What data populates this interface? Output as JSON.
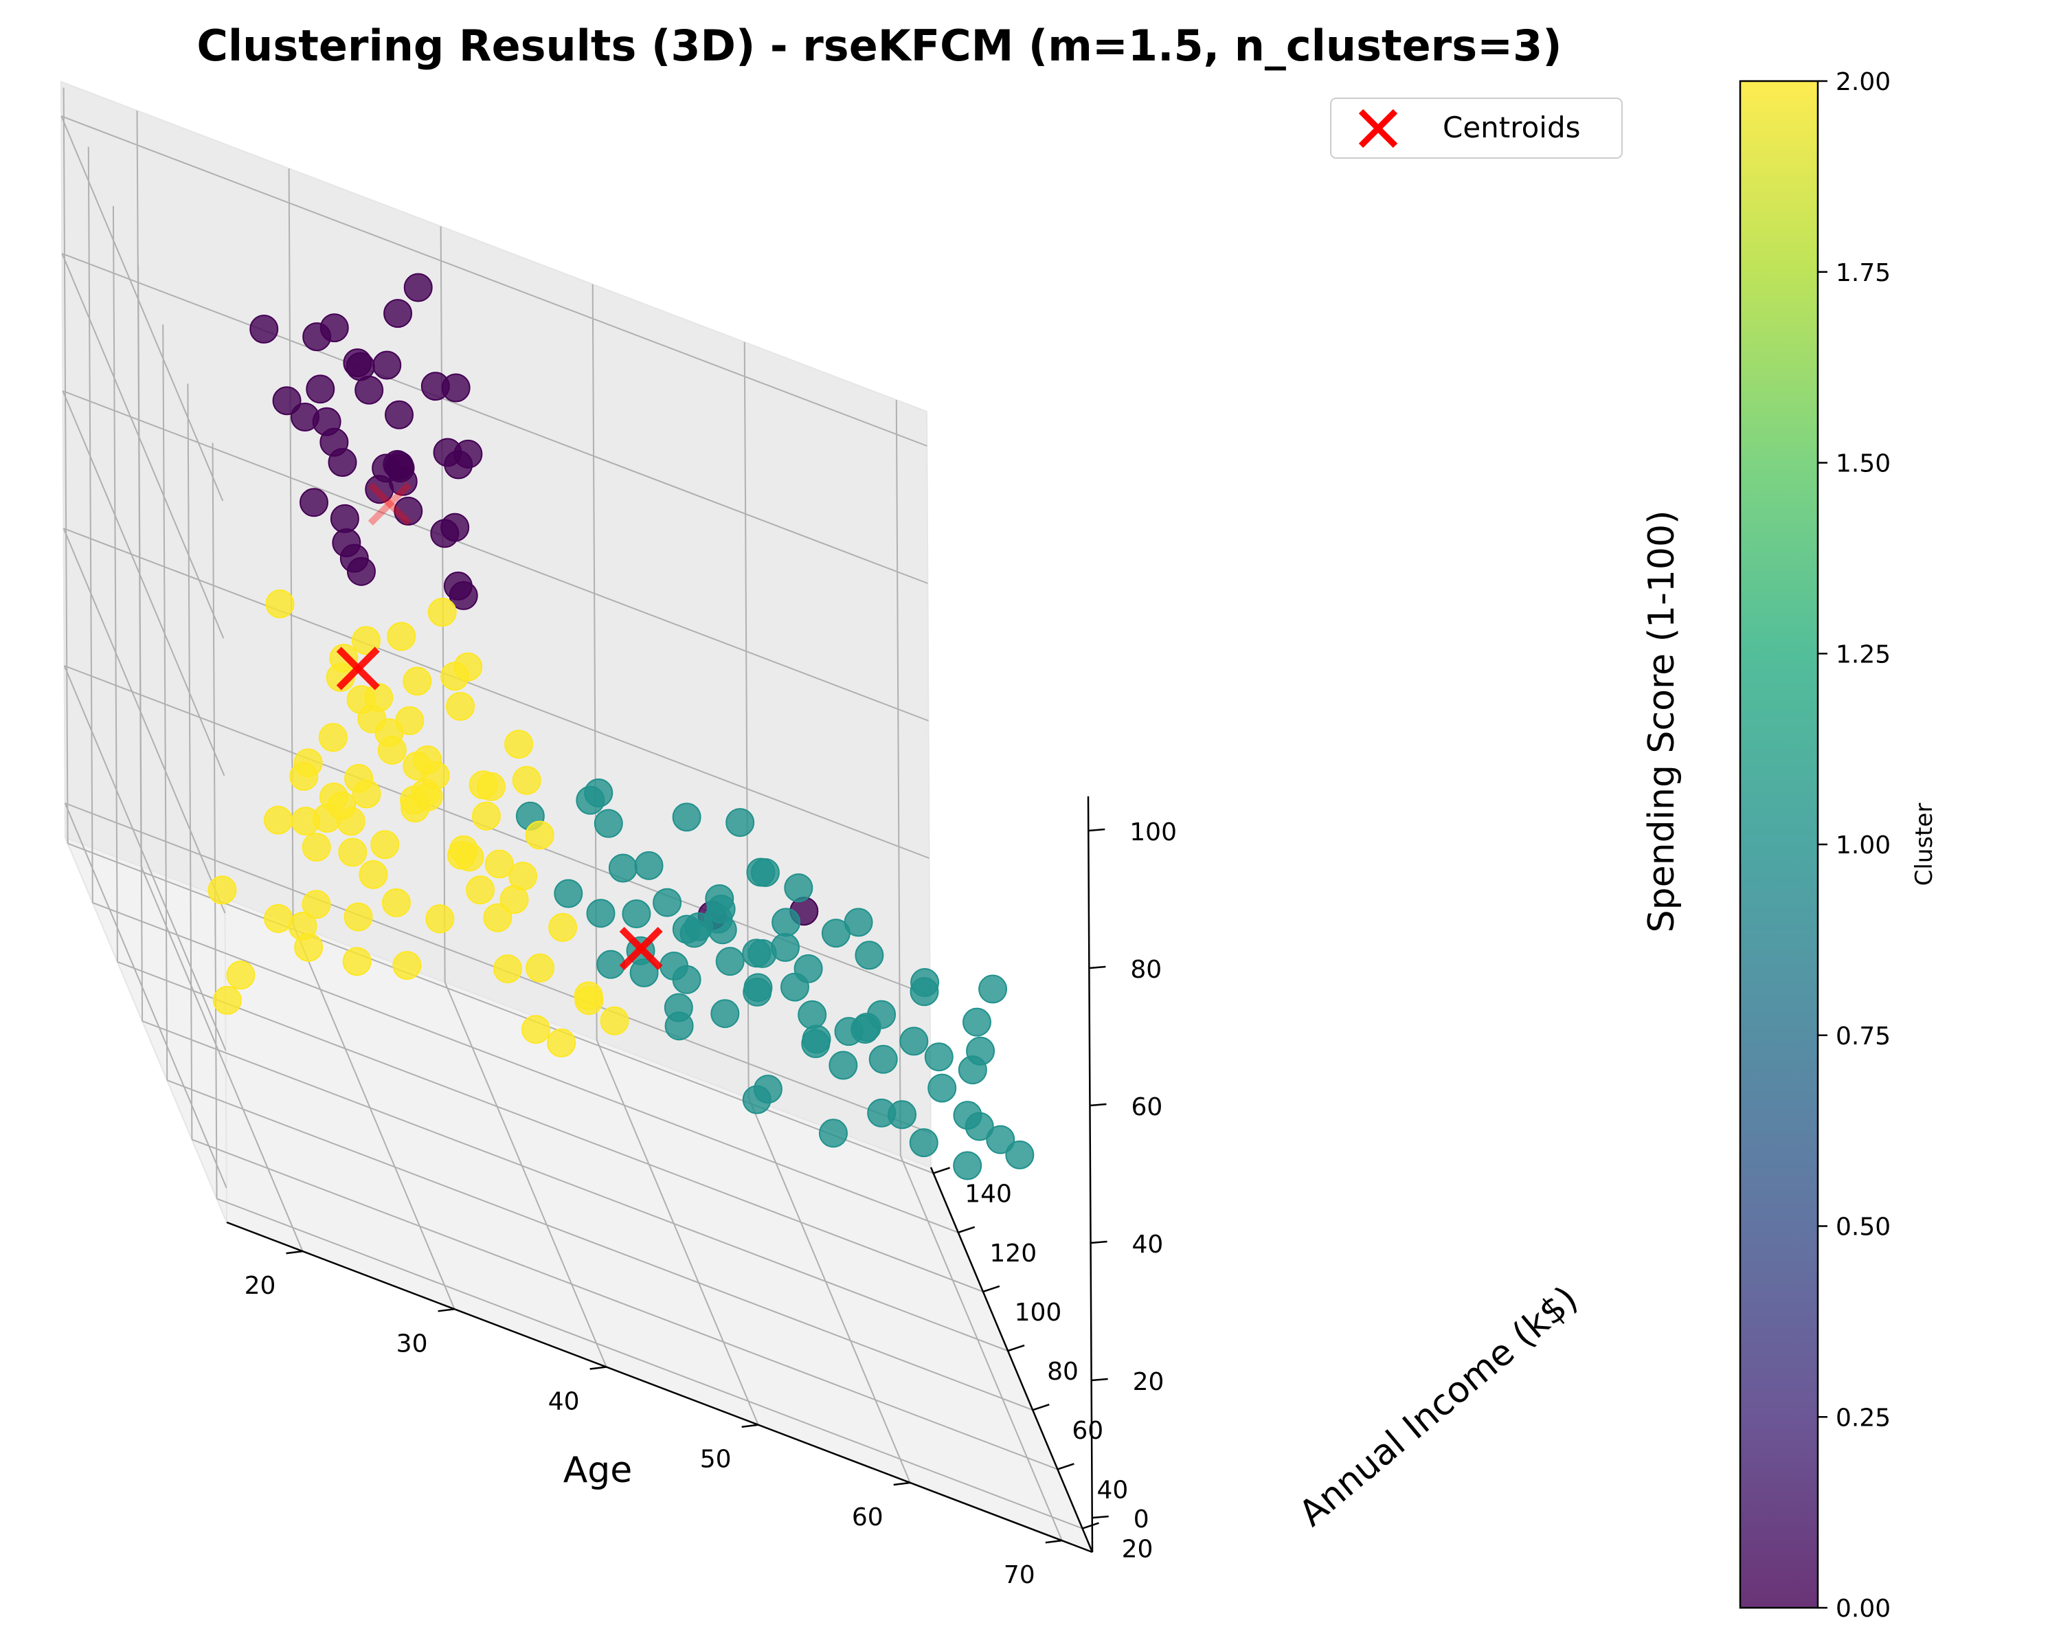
{
  "chart_data": {
    "type": "scatter",
    "title": "Clustering Results (3D) - rseKFCM (m=1.5, n_clusters=3)",
    "xlabel": "Age",
    "ylabel": "Annual Income (k$)",
    "zlabel": "Spending Score (1-100)",
    "x_ticks": [
      20,
      30,
      40,
      50,
      60,
      70
    ],
    "y_ticks": [
      20,
      40,
      60,
      80,
      100,
      120,
      140
    ],
    "z_ticks": [
      0,
      20,
      40,
      60,
      80,
      100
    ],
    "xlim": [
      15,
      72
    ],
    "ylim": [
      12,
      142
    ],
    "zlim": [
      -5,
      105
    ],
    "grid": true,
    "legend": {
      "label": "Centroids",
      "position": "top-right",
      "marker_color": "#ff0000"
    },
    "colorbar": {
      "label": "Cluster",
      "ticks": [
        "0.00",
        "0.25",
        "0.50",
        "0.75",
        "1.00",
        "1.25",
        "1.50",
        "1.75",
        "2.00"
      ],
      "range": [
        0,
        2
      ],
      "colormap": "viridis"
    },
    "cluster_colors": [
      "#440154",
      "#21918c",
      "#fde725"
    ],
    "centroids": [
      {
        "cluster": 0,
        "x": 32,
        "y": 86,
        "z": 82
      },
      {
        "cluster": 1,
        "x": 46,
        "y": 56,
        "z": 42
      },
      {
        "cluster": 2,
        "x": 25,
        "y": 26,
        "z": 78
      }
    ],
    "series": [
      {
        "cluster": 0,
        "points": [
          [
            28,
            60,
            80
          ],
          [
            30,
            64,
            95
          ],
          [
            35,
            70,
            88
          ],
          [
            32,
            75,
            90
          ],
          [
            29,
            78,
            75
          ],
          [
            31,
            82,
            85
          ],
          [
            36,
            88,
            92
          ],
          [
            27,
            86,
            78
          ],
          [
            33,
            92,
            86
          ],
          [
            38,
            96,
            90
          ],
          [
            30,
            98,
            73
          ],
          [
            34,
            102,
            82
          ],
          [
            29,
            105,
            88
          ],
          [
            37,
            110,
            93
          ],
          [
            31,
            112,
            76
          ],
          [
            35,
            115,
            85
          ],
          [
            39,
            118,
            91
          ],
          [
            28,
            120,
            79
          ],
          [
            33,
            124,
            87
          ],
          [
            36,
            128,
            95
          ],
          [
            30,
            130,
            74
          ],
          [
            34,
            134,
            83
          ],
          [
            38,
            136,
            97
          ],
          [
            32,
            137,
            72
          ],
          [
            27,
            126,
            86
          ],
          [
            31,
            118,
            93
          ],
          [
            35,
            108,
            74
          ],
          [
            33,
            100,
            97
          ],
          [
            29,
            94,
            85
          ],
          [
            37,
            88,
            72
          ],
          [
            32,
            78,
            91
          ],
          [
            28,
            72,
            79
          ],
          [
            34,
            66,
            88
          ],
          [
            36,
            80,
            76
          ],
          [
            31,
            90,
            96
          ],
          [
            30,
            120,
            90
          ],
          [
            38,
            104,
            85
          ],
          [
            52,
            72,
            45
          ],
          [
            60,
            96,
            42
          ]
        ]
      },
      {
        "cluster": 1,
        "points": [
          [
            48,
            54,
            42
          ],
          [
            54,
            56,
            48
          ],
          [
            60,
            60,
            40
          ],
          [
            45,
            58,
            52
          ],
          [
            50,
            62,
            45
          ],
          [
            52,
            66,
            50
          ],
          [
            58,
            68,
            44
          ],
          [
            62,
            70,
            38
          ],
          [
            44,
            72,
            55
          ],
          [
            48,
            74,
            48
          ],
          [
            53,
            76,
            42
          ],
          [
            56,
            78,
            52
          ],
          [
            63,
            80,
            45
          ],
          [
            46,
            82,
            49
          ],
          [
            50,
            84,
            40
          ],
          [
            55,
            86,
            55
          ],
          [
            59,
            88,
            48
          ],
          [
            65,
            60,
            50
          ],
          [
            68,
            58,
            42
          ],
          [
            61,
            64,
            55
          ],
          [
            66,
            72,
            47
          ],
          [
            70,
            66,
            52
          ],
          [
            49,
            46,
            52
          ],
          [
            53,
            48,
            45
          ],
          [
            57,
            50,
            40
          ],
          [
            63,
            44,
            48
          ],
          [
            67,
            42,
            55
          ],
          [
            58,
            40,
            42
          ],
          [
            64,
            36,
            50
          ],
          [
            50,
            40,
            58
          ],
          [
            55,
            42,
            50
          ],
          [
            45,
            44,
            46
          ],
          [
            47,
            38,
            42
          ],
          [
            52,
            36,
            55
          ],
          [
            60,
            32,
            48
          ],
          [
            66,
            28,
            45
          ],
          [
            55,
            28,
            52
          ],
          [
            62,
            24,
            41
          ],
          [
            68,
            20,
            46
          ],
          [
            51,
            24,
            38
          ],
          [
            49,
            30,
            60
          ],
          [
            58,
            22,
            55
          ],
          [
            48,
            50,
            35
          ],
          [
            54,
            52,
            30
          ],
          [
            44,
            56,
            38
          ],
          [
            61,
            46,
            35
          ],
          [
            57,
            36,
            33
          ],
          [
            52,
            62,
            35
          ],
          [
            59,
            74,
            32
          ],
          [
            47,
            66,
            35
          ],
          [
            43,
            78,
            38
          ],
          [
            63,
            54,
            33
          ],
          [
            67,
            50,
            38
          ],
          [
            65,
            46,
            42
          ],
          [
            69,
            48,
            37
          ],
          [
            62,
            58,
            45
          ],
          [
            56,
            62,
            48
          ],
          [
            53,
            70,
            40
          ],
          [
            51,
            80,
            55
          ],
          [
            46,
            90,
            50
          ],
          [
            57,
            94,
            46
          ],
          [
            41,
            84,
            45
          ],
          [
            44,
            64,
            42
          ],
          [
            49,
            56,
            40
          ],
          [
            66,
            38,
            35
          ],
          [
            69,
            64,
            43
          ],
          [
            60,
            70,
            50
          ],
          [
            55,
            72,
            37
          ],
          [
            50,
            68,
            43
          ],
          [
            58,
            86,
            43
          ],
          [
            47,
            72,
            41
          ]
        ]
      },
      {
        "cluster": 2,
        "points": [
          [
            19,
            18,
            40
          ],
          [
            21,
            20,
            55
          ],
          [
            23,
            22,
            68
          ],
          [
            22,
            24,
            42
          ],
          [
            25,
            26,
            62
          ],
          [
            24,
            28,
            75
          ],
          [
            20,
            30,
            50
          ],
          [
            26,
            32,
            58
          ],
          [
            27,
            34,
            72
          ],
          [
            23,
            36,
            46
          ],
          [
            28,
            38,
            66
          ],
          [
            29,
            40,
            80
          ],
          [
            30,
            42,
            55
          ],
          [
            31,
            44,
            62
          ],
          [
            33,
            46,
            75
          ],
          [
            35,
            48,
            60
          ],
          [
            26,
            50,
            70
          ],
          [
            34,
            52,
            48
          ],
          [
            36,
            54,
            58
          ],
          [
            38,
            56,
            65
          ],
          [
            32,
            58,
            52
          ],
          [
            37,
            60,
            45
          ],
          [
            39,
            62,
            58
          ],
          [
            40,
            64,
            50
          ],
          [
            25,
            40,
            52
          ],
          [
            27,
            44,
            76
          ],
          [
            29,
            48,
            60
          ],
          [
            31,
            52,
            70
          ],
          [
            33,
            56,
            80
          ],
          [
            35,
            60,
            72
          ],
          [
            24,
            34,
            55
          ],
          [
            28,
            42,
            48
          ],
          [
            30,
            46,
            66
          ],
          [
            32,
            50,
            58
          ],
          [
            34,
            54,
            68
          ],
          [
            36,
            58,
            52
          ],
          [
            22,
            30,
            60
          ],
          [
            26,
            36,
            70
          ],
          [
            30,
            40,
            62
          ],
          [
            28,
            52,
            62
          ],
          [
            37,
            48,
            45
          ],
          [
            39,
            52,
            35
          ],
          [
            41,
            58,
            40
          ],
          [
            43,
            62,
            30
          ],
          [
            38,
            66,
            28
          ],
          [
            40,
            68,
            20
          ],
          [
            42,
            72,
            18
          ],
          [
            44,
            74,
            25
          ],
          [
            46,
            78,
            22
          ],
          [
            21,
            40,
            78
          ],
          [
            23,
            46,
            52
          ],
          [
            25,
            52,
            45
          ],
          [
            27,
            56,
            40
          ],
          [
            35,
            66,
            42
          ],
          [
            29,
            64,
            35
          ],
          [
            33,
            68,
            48
          ],
          [
            31,
            70,
            30
          ],
          [
            36,
            72,
            40
          ],
          [
            38,
            74,
            32
          ],
          [
            40,
            78,
            38
          ],
          [
            24,
            60,
            25
          ],
          [
            28,
            64,
            28
          ],
          [
            32,
            74,
            20
          ],
          [
            26,
            80,
            15
          ],
          [
            22,
            86,
            5
          ],
          [
            30,
            90,
            12
          ],
          [
            35,
            84,
            25
          ],
          [
            38,
            88,
            30
          ],
          [
            34,
            92,
            38
          ],
          [
            29,
            82,
            35
          ],
          [
            20,
            76,
            20
          ],
          [
            19,
            60,
            10
          ]
        ]
      }
    ]
  }
}
